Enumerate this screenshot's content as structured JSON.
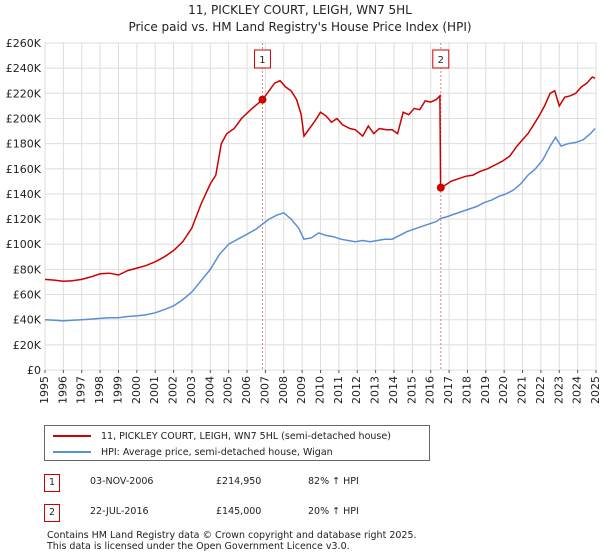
{
  "chart_data": {
    "type": "line",
    "title": "11, PICKLEY COURT, LEIGH, WN7 5HL",
    "subtitle": "Price paid vs. HM Land Registry's House Price Index (HPI)",
    "xlabel": "",
    "ylabel": "",
    "xlim": [
      1995,
      2025
    ],
    "ylim": [
      0,
      260000
    ],
    "grid": true,
    "x_ticks": [
      "1995",
      "1996",
      "1997",
      "1998",
      "1999",
      "2000",
      "2001",
      "2002",
      "2003",
      "2004",
      "2005",
      "2006",
      "2007",
      "2008",
      "2009",
      "2010",
      "2011",
      "2012",
      "2013",
      "2014",
      "2015",
      "2016",
      "2017",
      "2018",
      "2019",
      "2020",
      "2021",
      "2022",
      "2023",
      "2024",
      "2025"
    ],
    "y_ticks": [
      {
        "value": 0,
        "label": "£0"
      },
      {
        "value": 20000,
        "label": "£20K"
      },
      {
        "value": 40000,
        "label": "£40K"
      },
      {
        "value": 60000,
        "label": "£60K"
      },
      {
        "value": 80000,
        "label": "£80K"
      },
      {
        "value": 100000,
        "label": "£100K"
      },
      {
        "value": 120000,
        "label": "£120K"
      },
      {
        "value": 140000,
        "label": "£140K"
      },
      {
        "value": 160000,
        "label": "£160K"
      },
      {
        "value": 180000,
        "label": "£180K"
      },
      {
        "value": 200000,
        "label": "£200K"
      },
      {
        "value": 220000,
        "label": "£220K"
      },
      {
        "value": 240000,
        "label": "£240K"
      },
      {
        "value": 260000,
        "label": "£260K"
      }
    ],
    "series": [
      {
        "name": "11, PICKLEY COURT, LEIGH, WN7 5HL (semi-detached house)",
        "color": "#cc0000",
        "points": [
          [
            1995.0,
            72000
          ],
          [
            1995.5,
            71500
          ],
          [
            1996.0,
            70500
          ],
          [
            1996.5,
            71000
          ],
          [
            1997.0,
            72000
          ],
          [
            1997.5,
            74000
          ],
          [
            1998.0,
            76500
          ],
          [
            1998.5,
            77000
          ],
          [
            1999.0,
            75500
          ],
          [
            1999.5,
            79000
          ],
          [
            2000.0,
            81000
          ],
          [
            2000.5,
            83000
          ],
          [
            2001.0,
            86000
          ],
          [
            2001.5,
            90000
          ],
          [
            2002.0,
            95000
          ],
          [
            2002.5,
            102000
          ],
          [
            2003.0,
            113000
          ],
          [
            2003.5,
            132000
          ],
          [
            2004.0,
            148000
          ],
          [
            2004.3,
            155000
          ],
          [
            2004.6,
            180000
          ],
          [
            2004.9,
            188000
          ],
          [
            2005.3,
            192000
          ],
          [
            2005.7,
            200000
          ],
          [
            2006.2,
            207000
          ],
          [
            2006.6,
            212000
          ],
          [
            2006.84,
            214950
          ],
          [
            2007.1,
            220000
          ],
          [
            2007.5,
            228000
          ],
          [
            2007.8,
            230000
          ],
          [
            2008.1,
            225000
          ],
          [
            2008.4,
            222000
          ],
          [
            2008.7,
            215000
          ],
          [
            2008.95,
            203000
          ],
          [
            2009.1,
            186000
          ],
          [
            2009.4,
            192000
          ],
          [
            2009.7,
            198000
          ],
          [
            2010.0,
            205000
          ],
          [
            2010.3,
            202000
          ],
          [
            2010.6,
            197000
          ],
          [
            2010.9,
            200000
          ],
          [
            2011.2,
            195000
          ],
          [
            2011.6,
            192000
          ],
          [
            2011.9,
            191000
          ],
          [
            2012.3,
            186000
          ],
          [
            2012.6,
            194000
          ],
          [
            2012.9,
            188000
          ],
          [
            2013.2,
            192000
          ],
          [
            2013.6,
            191000
          ],
          [
            2013.9,
            191000
          ],
          [
            2014.2,
            188000
          ],
          [
            2014.5,
            205000
          ],
          [
            2014.8,
            203000
          ],
          [
            2015.1,
            208000
          ],
          [
            2015.4,
            207000
          ],
          [
            2015.7,
            214000
          ],
          [
            2016.0,
            213000
          ],
          [
            2016.3,
            215000
          ],
          [
            2016.5,
            218000
          ],
          [
            2016.54,
            145000
          ],
          [
            2016.8,
            147000
          ],
          [
            2017.1,
            150000
          ],
          [
            2017.5,
            152000
          ],
          [
            2017.9,
            154000
          ],
          [
            2018.3,
            155000
          ],
          [
            2018.7,
            158000
          ],
          [
            2019.1,
            160000
          ],
          [
            2019.5,
            163000
          ],
          [
            2019.9,
            166000
          ],
          [
            2020.3,
            170000
          ],
          [
            2020.7,
            178000
          ],
          [
            2021.0,
            183000
          ],
          [
            2021.3,
            188000
          ],
          [
            2021.6,
            195000
          ],
          [
            2021.9,
            202000
          ],
          [
            2022.2,
            210000
          ],
          [
            2022.5,
            220000
          ],
          [
            2022.75,
            222000
          ],
          [
            2023.0,
            210000
          ],
          [
            2023.3,
            217000
          ],
          [
            2023.6,
            218000
          ],
          [
            2023.9,
            220000
          ],
          [
            2024.2,
            225000
          ],
          [
            2024.5,
            228000
          ],
          [
            2024.8,
            233000
          ],
          [
            2024.95,
            232000
          ]
        ]
      },
      {
        "name": "HPI: Average price, semi-detached house, Wigan",
        "color": "#5b8fd4",
        "points": [
          [
            1995.0,
            40000
          ],
          [
            1995.5,
            39500
          ],
          [
            1996.0,
            39000
          ],
          [
            1996.5,
            39500
          ],
          [
            1997.0,
            40000
          ],
          [
            1997.5,
            40500
          ],
          [
            1998.0,
            41000
          ],
          [
            1998.5,
            41500
          ],
          [
            1999.0,
            41500
          ],
          [
            1999.5,
            42500
          ],
          [
            2000.0,
            43000
          ],
          [
            2000.5,
            44000
          ],
          [
            2001.0,
            45500
          ],
          [
            2001.5,
            48000
          ],
          [
            2002.0,
            51000
          ],
          [
            2002.5,
            56000
          ],
          [
            2003.0,
            62000
          ],
          [
            2003.5,
            71000
          ],
          [
            2004.0,
            80000
          ],
          [
            2004.5,
            92000
          ],
          [
            2005.0,
            100000
          ],
          [
            2005.5,
            104000
          ],
          [
            2006.0,
            108000
          ],
          [
            2006.5,
            112000
          ],
          [
            2006.84,
            116000
          ],
          [
            2007.2,
            120000
          ],
          [
            2007.6,
            123000
          ],
          [
            2008.0,
            125000
          ],
          [
            2008.4,
            120000
          ],
          [
            2008.8,
            113000
          ],
          [
            2009.1,
            104000
          ],
          [
            2009.5,
            105000
          ],
          [
            2009.9,
            109000
          ],
          [
            2010.3,
            107000
          ],
          [
            2010.7,
            106000
          ],
          [
            2011.1,
            104000
          ],
          [
            2011.5,
            103000
          ],
          [
            2011.9,
            102000
          ],
          [
            2012.3,
            103000
          ],
          [
            2012.7,
            102000
          ],
          [
            2013.1,
            103000
          ],
          [
            2013.5,
            104000
          ],
          [
            2013.9,
            104000
          ],
          [
            2014.3,
            107000
          ],
          [
            2014.7,
            110000
          ],
          [
            2015.1,
            112000
          ],
          [
            2015.5,
            114000
          ],
          [
            2015.9,
            116000
          ],
          [
            2016.3,
            118000
          ],
          [
            2016.54,
            120500
          ],
          [
            2016.9,
            122000
          ],
          [
            2017.3,
            124000
          ],
          [
            2017.7,
            126000
          ],
          [
            2018.1,
            128000
          ],
          [
            2018.5,
            130000
          ],
          [
            2018.9,
            133000
          ],
          [
            2019.3,
            135000
          ],
          [
            2019.7,
            138000
          ],
          [
            2020.1,
            140000
          ],
          [
            2020.5,
            143000
          ],
          [
            2020.9,
            148000
          ],
          [
            2021.3,
            155000
          ],
          [
            2021.7,
            160000
          ],
          [
            2022.1,
            167000
          ],
          [
            2022.5,
            178000
          ],
          [
            2022.8,
            185000
          ],
          [
            2023.1,
            178000
          ],
          [
            2023.5,
            180000
          ],
          [
            2023.9,
            181000
          ],
          [
            2024.3,
            183000
          ],
          [
            2024.7,
            188000
          ],
          [
            2024.95,
            192000
          ]
        ]
      }
    ],
    "annotations": [
      {
        "id": "1",
        "x": 2006.84,
        "y": 214950
      },
      {
        "id": "2",
        "x": 2016.55,
        "y": 145000
      }
    ]
  },
  "legend": {
    "items": [
      {
        "label": "11, PICKLEY COURT, LEIGH, WN7 5HL (semi-detached house)",
        "color": "#cc0000"
      },
      {
        "label": "HPI: Average price, semi-detached house, Wigan",
        "color": "#5b8fd4"
      }
    ]
  },
  "transactions": [
    {
      "id": "1",
      "date": "03-NOV-2006",
      "price": "£214,950",
      "hpi": "82% ↑ HPI"
    },
    {
      "id": "2",
      "date": "22-JUL-2016",
      "price": "£145,000",
      "hpi": "20% ↑ HPI"
    }
  ],
  "footer": {
    "line1": "Contains HM Land Registry data © Crown copyright and database right 2025.",
    "line2": "This data is licensed under the Open Government Licence v3.0."
  }
}
